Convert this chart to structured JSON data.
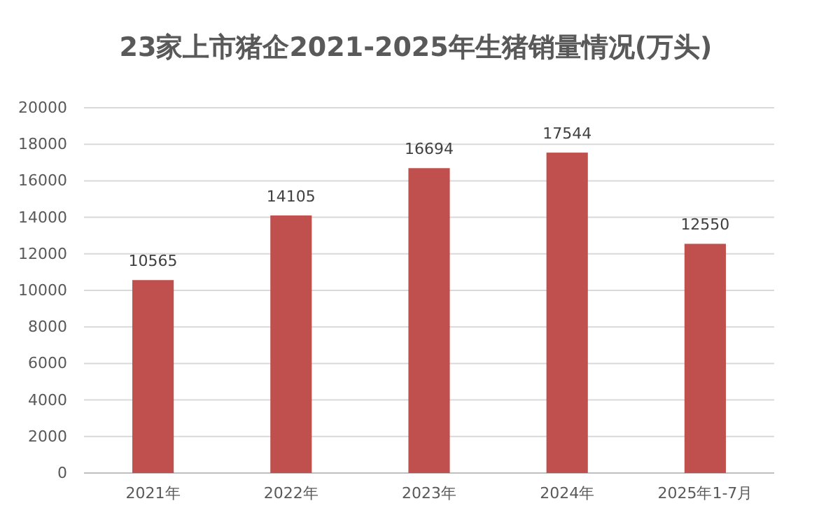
{
  "chart_data": {
    "type": "bar",
    "title": "23家上市猪企2021-2025年生猪销量情况(万头)",
    "categories": [
      "2021年",
      "2022年",
      "2023年",
      "2024年",
      "2025年1-7月"
    ],
    "values": [
      10565,
      14105,
      16694,
      17544,
      12550
    ],
    "color": "#c0504d",
    "ylim": [
      0,
      20000
    ],
    "yticks": [
      0,
      2000,
      4000,
      6000,
      8000,
      10000,
      12000,
      14000,
      16000,
      18000,
      20000
    ],
    "grid": "y",
    "data_labels": true
  }
}
